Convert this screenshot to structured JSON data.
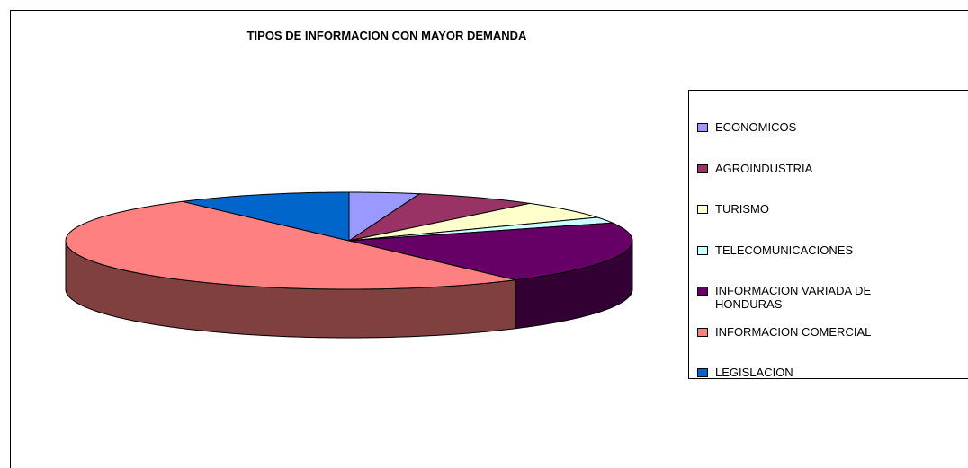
{
  "chart_data": {
    "type": "pie",
    "title": "TIPOS DE INFORMACION CON MAYOR DEMANDA",
    "categories": [
      "ECONOMICOS",
      "AGROINDUSTRIA",
      "TURISMO",
      "TELECOMUNICACIONES",
      "INFORMACION VARIADA DE HONDURAS",
      "INFORMACION COMERCIAL",
      "LEGISLACION"
    ],
    "values": [
      4,
      7,
      6,
      2,
      21,
      50,
      10
    ],
    "colors": [
      "#9999ff",
      "#993366",
      "#ffffcc",
      "#ccffff",
      "#660066",
      "#ff8080",
      "#0066cc"
    ],
    "legend": "right"
  }
}
